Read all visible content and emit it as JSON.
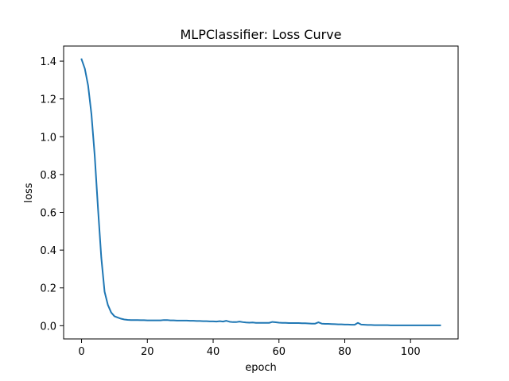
{
  "chart_data": {
    "type": "line",
    "title": "MLPClassifier: Loss Curve",
    "xlabel": "epoch",
    "ylabel": "loss",
    "xlim": [
      -5.45,
      114.45
    ],
    "ylim": [
      -0.07,
      1.48
    ],
    "xticks": [
      0,
      20,
      40,
      60,
      80,
      100
    ],
    "xtick_labels": [
      "0",
      "20",
      "40",
      "60",
      "80",
      "100"
    ],
    "yticks": [
      0.0,
      0.2,
      0.4,
      0.6,
      0.8,
      1.0,
      1.2,
      1.4
    ],
    "ytick_labels": [
      "0.0",
      "0.2",
      "0.4",
      "0.6",
      "0.8",
      "1.0",
      "1.2",
      "1.4"
    ],
    "grid": false,
    "legend": "none",
    "series": [
      {
        "color": "#1f77b4",
        "x": [
          0,
          1,
          2,
          3,
          4,
          5,
          6,
          7,
          8,
          9,
          10,
          11,
          12,
          13,
          14,
          15,
          16,
          17,
          18,
          19,
          20,
          21,
          22,
          23,
          24,
          25,
          26,
          27,
          28,
          29,
          30,
          31,
          32,
          33,
          34,
          35,
          36,
          37,
          38,
          39,
          40,
          41,
          42,
          43,
          44,
          45,
          46,
          47,
          48,
          49,
          50,
          51,
          52,
          53,
          54,
          55,
          56,
          57,
          58,
          59,
          60,
          61,
          62,
          63,
          64,
          65,
          66,
          67,
          68,
          69,
          70,
          71,
          72,
          73,
          74,
          75,
          76,
          77,
          78,
          79,
          80,
          81,
          82,
          83,
          84,
          85,
          86,
          87,
          88,
          89,
          90,
          91,
          92,
          93,
          94,
          95,
          96,
          97,
          98,
          99,
          100,
          101,
          102,
          103,
          104,
          105,
          106,
          107,
          108,
          109
        ],
        "y": [
          1.41,
          1.36,
          1.27,
          1.12,
          0.9,
          0.62,
          0.36,
          0.18,
          0.11,
          0.07,
          0.05,
          0.043,
          0.037,
          0.033,
          0.031,
          0.03,
          0.03,
          0.03,
          0.029,
          0.029,
          0.028,
          0.028,
          0.028,
          0.028,
          0.028,
          0.03,
          0.03,
          0.028,
          0.028,
          0.027,
          0.027,
          0.027,
          0.027,
          0.026,
          0.026,
          0.025,
          0.025,
          0.024,
          0.024,
          0.023,
          0.023,
          0.022,
          0.024,
          0.022,
          0.026,
          0.021,
          0.019,
          0.019,
          0.022,
          0.019,
          0.017,
          0.016,
          0.017,
          0.015,
          0.015,
          0.015,
          0.015,
          0.015,
          0.02,
          0.018,
          0.016,
          0.015,
          0.015,
          0.014,
          0.014,
          0.014,
          0.014,
          0.013,
          0.013,
          0.012,
          0.011,
          0.011,
          0.018,
          0.011,
          0.01,
          0.01,
          0.009,
          0.008,
          0.007,
          0.007,
          0.006,
          0.006,
          0.005,
          0.005,
          0.015,
          0.006,
          0.005,
          0.004,
          0.004,
          0.003,
          0.003,
          0.003,
          0.003,
          0.003,
          0.002,
          0.002,
          0.002,
          0.002,
          0.002,
          0.002,
          0.002,
          0.002,
          0.002,
          0.002,
          0.002,
          0.002,
          0.002,
          0.002,
          0.002,
          0.002
        ]
      }
    ]
  }
}
